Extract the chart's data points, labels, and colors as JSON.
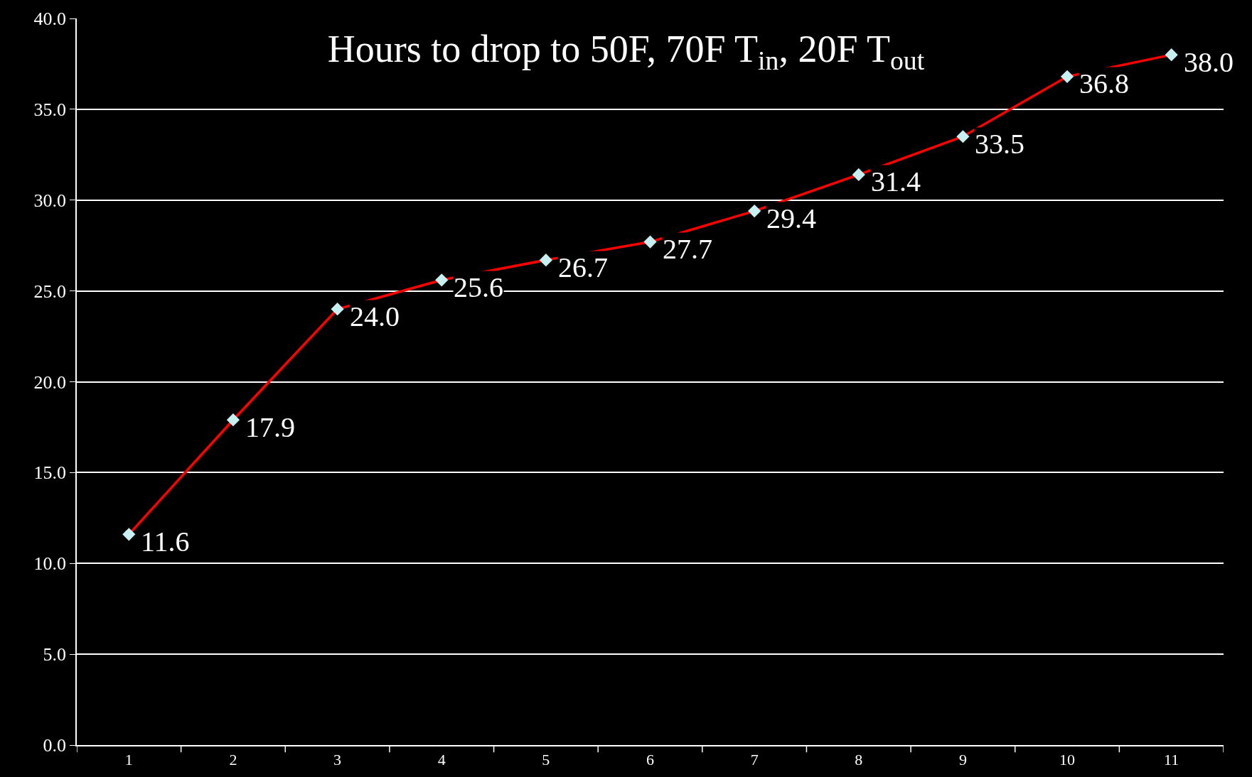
{
  "chart_data": {
    "type": "line",
    "title": "Hours to drop to 50F, 70F T$_{in}$, 20F T$_{out}$",
    "categories": [
      "1",
      "2",
      "3",
      "4",
      "5",
      "6",
      "7",
      "8",
      "9",
      "10",
      "11"
    ],
    "series": [
      {
        "color": "#ff0000",
        "values": [
          11.6,
          17.9,
          24.0,
          25.6,
          26.7,
          27.7,
          29.4,
          31.4,
          33.5,
          36.8,
          38.0
        ],
        "value_labels": [
          "11.6",
          "17.9",
          "24.0",
          "25.6",
          "26.7",
          "27.7",
          "29.4",
          "31.4",
          "33.5",
          "36.8",
          "38.0"
        ]
      }
    ],
    "ylim": [
      0,
      40
    ],
    "yticks": [
      {
        "value": 0,
        "label": "0.0"
      },
      {
        "value": 5,
        "label": "5.0"
      },
      {
        "value": 10,
        "label": "10.0"
      },
      {
        "value": 15,
        "label": "15.0"
      },
      {
        "value": 20,
        "label": "20.0"
      },
      {
        "value": 25,
        "label": "25.0"
      },
      {
        "value": 30,
        "label": "30.0"
      },
      {
        "value": 35,
        "label": "35.0"
      },
      {
        "value": 40,
        "label": "40.0"
      }
    ],
    "grid": "y",
    "marker": "diamond",
    "line_style": "solid",
    "legend": false
  }
}
